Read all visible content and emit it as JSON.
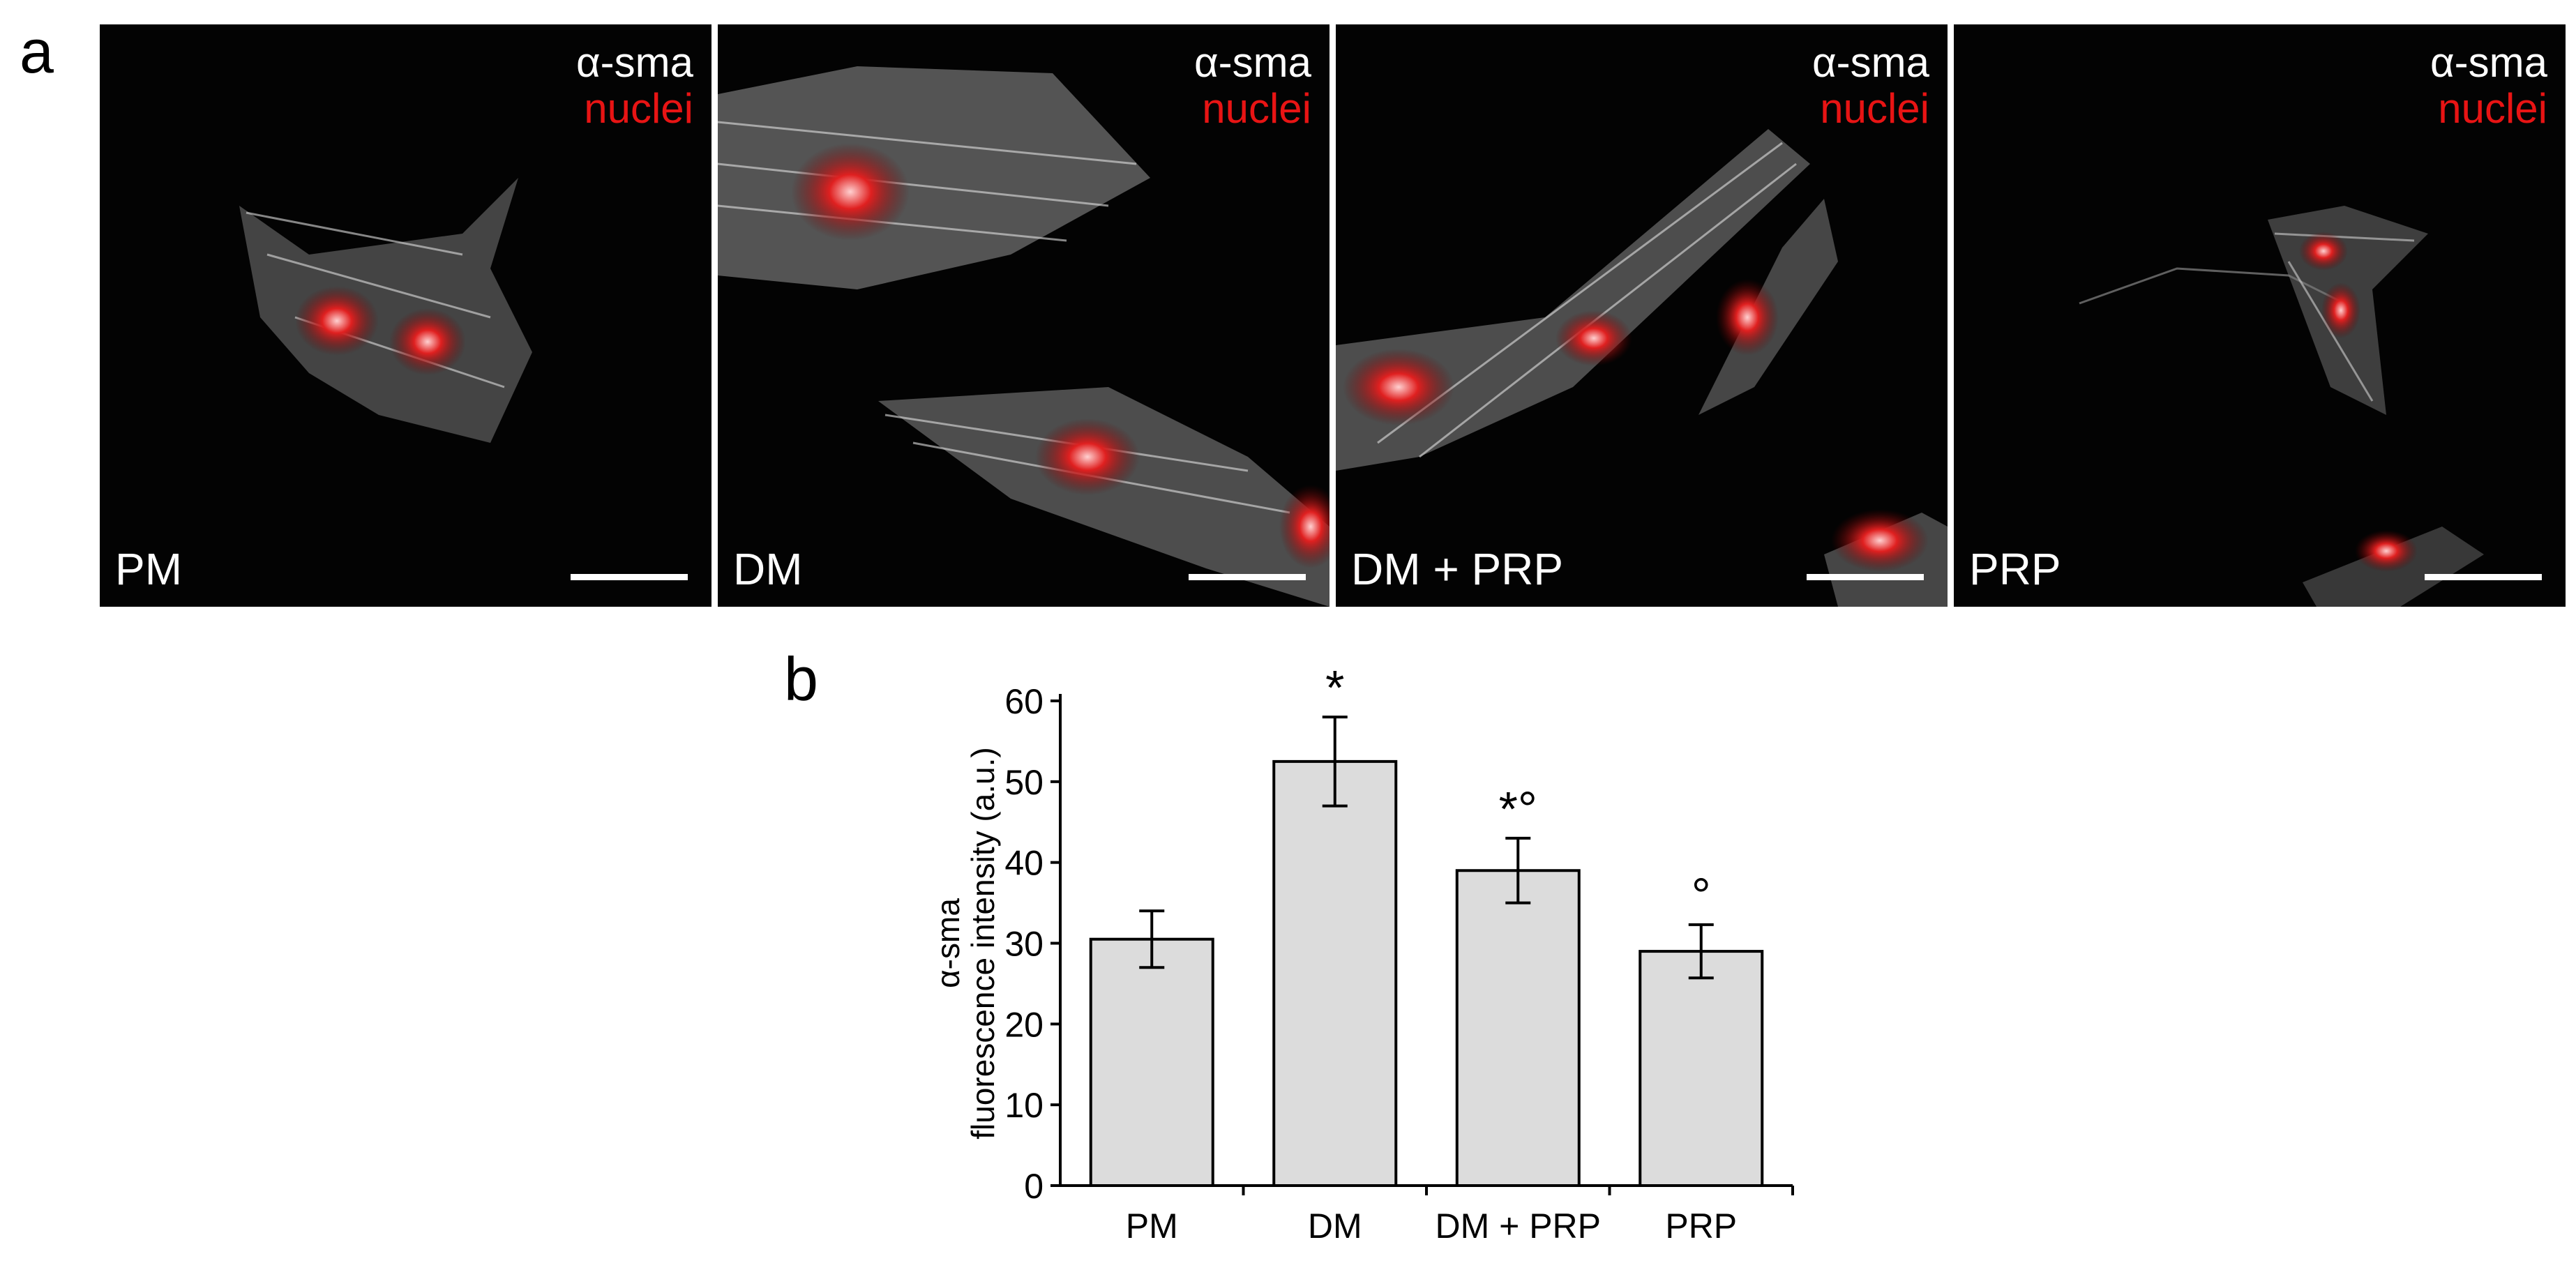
{
  "figure": {
    "panel_a_letter": "a",
    "panel_b_letter": "b",
    "legend_line1": "α-sma",
    "legend_line2": "nuclei",
    "legend_colors": {
      "alpha_sma": "#ffffff",
      "nuclei": "#e81414"
    },
    "panels": [
      {
        "condition": "PM"
      },
      {
        "condition": "DM"
      },
      {
        "condition": "DM + PRP"
      },
      {
        "condition": "PRP"
      }
    ]
  },
  "chart_data": {
    "type": "bar",
    "categories": [
      "PM",
      "DM",
      "DM + PRP",
      "PRP"
    ],
    "values": [
      30.5,
      52.5,
      39.0,
      29.0
    ],
    "errors": [
      3.5,
      5.5,
      4.0,
      3.3
    ],
    "significance": [
      "",
      "*",
      "*°",
      "°"
    ],
    "ylabel_line1": "α-sma",
    "ylabel_line2": "fluorescence intensity (a.u.)",
    "ylim": [
      0,
      60
    ],
    "yticks": [
      0,
      10,
      20,
      30,
      40,
      50,
      60
    ],
    "bar_color": "#dcdcdc",
    "grid": false
  }
}
